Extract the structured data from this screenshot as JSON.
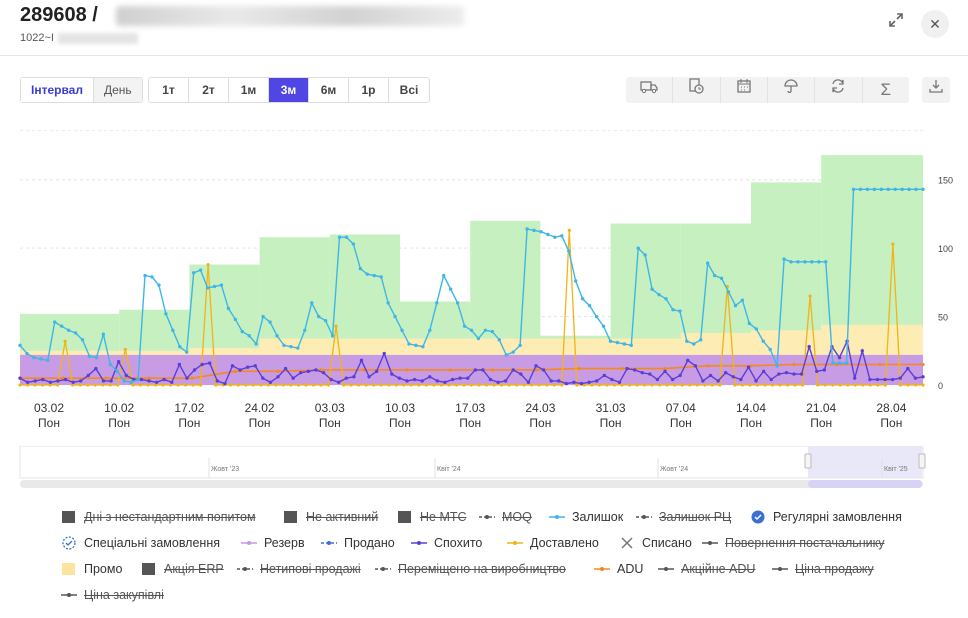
{
  "header": {
    "title": "289608 /",
    "subtitle": "1022~I",
    "expand_icon": "expand-icon",
    "close_icon": "close-icon"
  },
  "toggle": {
    "interval": "Інтервал",
    "day": "День"
  },
  "ranges": [
    "1т",
    "2т",
    "1м",
    "3м",
    "6м",
    "1р",
    "Всі"
  ],
  "active_range": "3м",
  "tools": [
    "truck-icon",
    "clock-add-icon",
    "calendar-icon",
    "umbrella-icon",
    "refresh-icon",
    "sigma-icon"
  ],
  "download_icon": "download-icon",
  "chart_data": {
    "type": "line",
    "x_ticks": [
      {
        "date": "03.02",
        "day": "Пон"
      },
      {
        "date": "10.02",
        "day": "Пон"
      },
      {
        "date": "17.02",
        "day": "Пон"
      },
      {
        "date": "24.02",
        "day": "Пон"
      },
      {
        "date": "03.03",
        "day": "Пон"
      },
      {
        "date": "10.03",
        "day": "Пон"
      },
      {
        "date": "17.03",
        "day": "Пон"
      },
      {
        "date": "24.03",
        "day": "Пон"
      },
      {
        "date": "31.03",
        "day": "Пон"
      },
      {
        "date": "07.04",
        "day": "Пон"
      },
      {
        "date": "14.04",
        "day": "Пон"
      },
      {
        "date": "21.04",
        "day": "Пон"
      },
      {
        "date": "28.04",
        "day": "Пон"
      }
    ],
    "y_ticks": [
      "150",
      "100",
      "50",
      "0"
    ],
    "ylim": [
      0,
      190
    ],
    "grid": true,
    "series": [
      {
        "name": "Залишок",
        "color": "#3fb6e6",
        "values": [
          29,
          23,
          20,
          19,
          18,
          46,
          43,
          40,
          38,
          33,
          21,
          20,
          37,
          15,
          10,
          3,
          2,
          4,
          80,
          79,
          73,
          52,
          40,
          28,
          24,
          82,
          84,
          71,
          72,
          73,
          56,
          48,
          39,
          36,
          30,
          50,
          46,
          36,
          29,
          28,
          27,
          40,
          60,
          50,
          47,
          36,
          108,
          108,
          103,
          85,
          81,
          80,
          79,
          60,
          50,
          40,
          30,
          29,
          28,
          40,
          60,
          80,
          70,
          60,
          43,
          40,
          34,
          40,
          39,
          33,
          22,
          24,
          29,
          114,
          113,
          112,
          110,
          108,
          109,
          98,
          76,
          63,
          58,
          50,
          43,
          32,
          31,
          30,
          29,
          100,
          95,
          70,
          66,
          63,
          55,
          54,
          32,
          30,
          33,
          89,
          80,
          78,
          68,
          58,
          62,
          45,
          41,
          32,
          26,
          14,
          92,
          90,
          90,
          90,
          90,
          90,
          90,
          16,
          16,
          16,
          143,
          143,
          143,
          143,
          143,
          143,
          143,
          143,
          143,
          143,
          143
        ]
      },
      {
        "name": "Спохито",
        "color": "#5a3fd6",
        "values": [
          5,
          2,
          3,
          4,
          2,
          3,
          4,
          2,
          3,
          7,
          12,
          3,
          3,
          17,
          7,
          4,
          4,
          3,
          2,
          4,
          2,
          15,
          5,
          11,
          15,
          16,
          3,
          1,
          14,
          11,
          13,
          14,
          5,
          2,
          6,
          12,
          5,
          9,
          10,
          11,
          9,
          4,
          2,
          5,
          6,
          18,
          6,
          10,
          23,
          8,
          5,
          3,
          4,
          3,
          6,
          3,
          2,
          4,
          5,
          5,
          11,
          11,
          4,
          2,
          3,
          11,
          8,
          2,
          14,
          11,
          3,
          3,
          1,
          2,
          1,
          2,
          3,
          7,
          4,
          2,
          12,
          11,
          9,
          8,
          4,
          10,
          4,
          7,
          18,
          14,
          3,
          7,
          3,
          9,
          6,
          4,
          13,
          3,
          10,
          4,
          8,
          9,
          8,
          8,
          28,
          10,
          11,
          28,
          20,
          32,
          5,
          25,
          4,
          4,
          4,
          4,
          5,
          12,
          5,
          6
        ]
      },
      {
        "name": "Доставлено",
        "color": "#f0b417",
        "values": [
          0,
          0,
          0,
          0,
          0,
          0,
          32,
          0,
          0,
          0,
          0,
          0,
          0,
          0,
          26,
          0,
          0,
          0,
          0,
          0,
          0,
          0,
          0,
          0,
          0,
          88,
          0,
          0,
          0,
          0,
          0,
          0,
          0,
          0,
          0,
          0,
          0,
          0,
          0,
          0,
          0,
          0,
          43,
          0,
          0,
          0,
          0,
          0,
          0,
          0,
          0,
          0,
          0,
          0,
          0,
          0,
          0,
          0,
          0,
          0,
          0,
          0,
          0,
          0,
          0,
          0,
          0,
          0,
          0,
          0,
          0,
          0,
          0,
          113,
          0,
          0,
          0,
          0,
          0,
          0,
          0,
          0,
          0,
          0,
          0,
          0,
          0,
          0,
          0,
          0,
          0,
          0,
          0,
          0,
          72,
          0,
          0,
          0,
          0,
          0,
          0,
          0,
          0,
          0,
          0,
          65,
          0,
          0,
          0,
          0,
          0,
          0,
          0,
          0,
          0,
          0,
          103,
          0,
          0,
          0,
          0
        ]
      },
      {
        "name": "ADU",
        "color": "#f28a1c",
        "values": [
          5,
          5,
          5,
          5,
          5,
          10,
          10,
          11,
          11,
          11,
          11,
          11,
          11,
          12,
          12,
          12,
          14,
          14,
          15,
          15,
          15,
          15
        ]
      }
    ],
    "bands": [
      {
        "name": "Залишок мін/макс",
        "color": "#c6f0c0",
        "steps": [
          {
            "from": "27.01",
            "to": "10.02",
            "max": 52
          },
          {
            "from": "10.02",
            "to": "17.02",
            "max": 55
          },
          {
            "from": "17.02",
            "to": "24.02",
            "max": 88
          },
          {
            "from": "24.02",
            "to": "03.03",
            "max": 108
          },
          {
            "from": "03.03",
            "to": "10.03",
            "max": 110
          },
          {
            "from": "10.03",
            "to": "17.03",
            "max": 61
          },
          {
            "from": "17.03",
            "to": "24.03",
            "max": 120
          },
          {
            "from": "24.03",
            "to": "31.03",
            "max": 36
          },
          {
            "from": "31.03",
            "to": "07.04",
            "max": 118
          },
          {
            "from": "07.04",
            "to": "14.04",
            "max": 118
          },
          {
            "from": "14.04",
            "to": "21.04",
            "max": 148
          },
          {
            "from": "21.04",
            "to": "05.05",
            "max": 168
          }
        ]
      },
      {
        "name": "Промо",
        "color": "#fdecb4",
        "max": 40
      },
      {
        "name": "Резерв",
        "color": "#c597e8",
        "max": 22
      }
    ]
  },
  "navigator": {
    "labels": [
      "Жовт '23",
      "Квіт '24",
      "Жовт '24",
      "Квіт '25"
    ]
  },
  "legend": [
    {
      "label": "Дні з нестандартним попитом",
      "icon": "square",
      "color": "#555",
      "struck": true
    },
    {
      "label": "Не активний",
      "icon": "square",
      "color": "#555",
      "struck": true
    },
    {
      "label": "Не МТС",
      "icon": "square",
      "color": "#555",
      "struck": true
    },
    {
      "label": "MOQ",
      "icon": "dashline",
      "color": "#555",
      "struck": true
    },
    {
      "label": "Залишок",
      "icon": "line",
      "color": "#3fb6e6",
      "struck": false
    },
    {
      "label": "Залишок РЦ",
      "icon": "dashline",
      "color": "#555",
      "struck": true
    },
    {
      "label": "Регулярні замовлення",
      "icon": "badge",
      "color": "#3b6ed6",
      "struck": false
    },
    {
      "label": "Спеціальні замовлення",
      "icon": "badge-outline",
      "color": "#3b6ed6",
      "struck": false
    },
    {
      "label": "Резерв",
      "icon": "line",
      "color": "#c597e8",
      "struck": false
    },
    {
      "label": "Продано",
      "icon": "dashline",
      "color": "#3b6ed6",
      "struck": false
    },
    {
      "label": "Спохито",
      "icon": "line",
      "color": "#5a3fd6",
      "struck": false
    },
    {
      "label": "Доставлено",
      "icon": "line",
      "color": "#f0b417",
      "struck": false
    },
    {
      "label": "Списано",
      "icon": "cross",
      "color": "#777",
      "struck": false
    },
    {
      "label": "Повернення постачальнику",
      "icon": "line",
      "color": "#555",
      "struck": true
    },
    {
      "label": "Промо",
      "icon": "square",
      "color": "#fde3a0",
      "struck": false
    },
    {
      "label": "Акція ERP",
      "icon": "square",
      "color": "#555",
      "struck": true
    },
    {
      "label": "Нетипові продажі",
      "icon": "dashline",
      "color": "#555",
      "struck": true
    },
    {
      "label": "Переміщено на виробництво",
      "icon": "dashline",
      "color": "#555",
      "struck": true
    },
    {
      "label": "ADU",
      "icon": "line",
      "color": "#f28a1c",
      "struck": false
    },
    {
      "label": "Акційне ADU",
      "icon": "line",
      "color": "#555",
      "struck": true
    },
    {
      "label": "Ціна продажу",
      "icon": "line",
      "color": "#555",
      "struck": true
    },
    {
      "label": "Ціна закупівлі",
      "icon": "line",
      "color": "#555",
      "struck": true
    }
  ]
}
